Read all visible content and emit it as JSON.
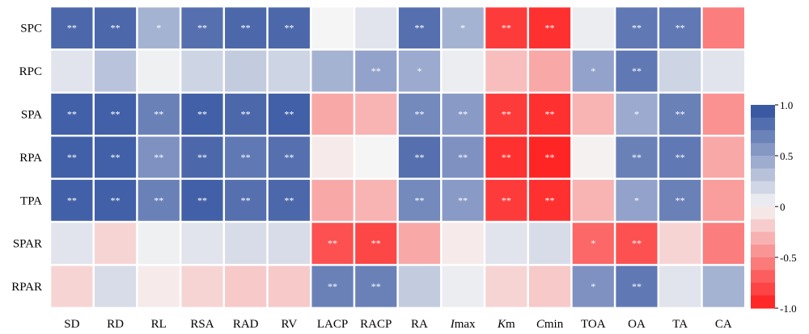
{
  "chart_data": {
    "type": "heatmap",
    "rows": [
      "SPC",
      "RPC",
      "SPA",
      "RPA",
      "TPA",
      "SPAR",
      "RPAR"
    ],
    "columns": [
      {
        "label": "SD",
        "italic_prefix": ""
      },
      {
        "label": "RD",
        "italic_prefix": ""
      },
      {
        "label": "RL",
        "italic_prefix": ""
      },
      {
        "label": "RSA",
        "italic_prefix": ""
      },
      {
        "label": "RAD",
        "italic_prefix": ""
      },
      {
        "label": "RV",
        "italic_prefix": ""
      },
      {
        "label": "LACP",
        "italic_prefix": ""
      },
      {
        "label": "RACP",
        "italic_prefix": ""
      },
      {
        "label": "RA",
        "italic_prefix": ""
      },
      {
        "label": "max",
        "italic_prefix": "I"
      },
      {
        "label": "m",
        "italic_prefix": "K"
      },
      {
        "label": "min",
        "italic_prefix": "C"
      },
      {
        "label": "TOA",
        "italic_prefix": ""
      },
      {
        "label": "OA",
        "italic_prefix": ""
      },
      {
        "label": "TA",
        "italic_prefix": ""
      },
      {
        "label": "CA",
        "italic_prefix": ""
      }
    ],
    "values": [
      [
        0.85,
        0.85,
        0.4,
        0.8,
        0.85,
        0.85,
        0.0,
        0.1,
        0.8,
        0.4,
        -0.85,
        -0.9,
        0.05,
        0.75,
        0.75,
        -0.55
      ],
      [
        0.1,
        0.3,
        0.03,
        0.2,
        0.25,
        0.2,
        0.4,
        0.5,
        0.45,
        0.05,
        -0.25,
        -0.35,
        0.5,
        0.75,
        0.2,
        0.1
      ],
      [
        0.9,
        0.9,
        0.7,
        0.9,
        0.85,
        0.9,
        -0.35,
        -0.3,
        0.65,
        0.55,
        -0.85,
        -0.9,
        -0.3,
        0.45,
        0.7,
        -0.45
      ],
      [
        0.9,
        0.9,
        0.6,
        0.85,
        0.75,
        0.8,
        -0.05,
        0.0,
        0.8,
        0.6,
        -0.9,
        -0.95,
        -0.02,
        0.7,
        0.75,
        -0.35
      ],
      [
        0.9,
        0.9,
        0.7,
        0.9,
        0.8,
        0.85,
        -0.35,
        -0.3,
        0.65,
        0.55,
        -0.85,
        -0.9,
        -0.3,
        0.5,
        0.7,
        -0.4
      ],
      [
        0.1,
        -0.15,
        0.03,
        0.1,
        0.15,
        0.15,
        -0.75,
        -0.8,
        -0.35,
        -0.05,
        0.1,
        0.15,
        -0.65,
        -0.75,
        -0.15,
        -0.55
      ],
      [
        -0.15,
        0.15,
        -0.05,
        -0.15,
        -0.2,
        -0.2,
        0.7,
        0.7,
        0.25,
        0.05,
        -0.15,
        -0.2,
        0.6,
        0.75,
        0.1,
        0.4
      ]
    ],
    "significance": [
      [
        "**",
        "**",
        "*",
        "**",
        "**",
        "**",
        "",
        "",
        "**",
        "*",
        "**",
        "**",
        "",
        "**",
        "**",
        ""
      ],
      [
        "",
        "",
        "",
        "",
        "",
        "",
        "",
        "**",
        "*",
        "",
        "",
        "",
        "*",
        "**",
        "",
        ""
      ],
      [
        "**",
        "**",
        "**",
        "**",
        "**",
        "**",
        "",
        "",
        "**",
        "**",
        "**",
        "**",
        "",
        "*",
        "**",
        ""
      ],
      [
        "**",
        "**",
        "**",
        "**",
        "**",
        "**",
        "",
        "",
        "**",
        "**",
        "**",
        "**",
        "",
        "**",
        "**",
        ""
      ],
      [
        "**",
        "**",
        "**",
        "**",
        "**",
        "**",
        "",
        "",
        "**",
        "**",
        "**",
        "**",
        "",
        "*",
        "**",
        ""
      ],
      [
        "",
        "",
        "",
        "",
        "",
        "",
        "**",
        "**",
        "",
        "",
        "",
        "",
        "*",
        "**",
        "",
        ""
      ],
      [
        "",
        "",
        "",
        "",
        "",
        "",
        "**",
        "**",
        "",
        "",
        "",
        "",
        "*",
        "**",
        "",
        ""
      ]
    ],
    "colorbar": {
      "min": -1.0,
      "max": 1.0,
      "ticks": [
        {
          "value": 1.0,
          "label": "1.0"
        },
        {
          "value": 0.5,
          "label": "0.5"
        },
        {
          "value": 0.0,
          "label": "0"
        },
        {
          "value": -0.5,
          "label": "-0.5"
        },
        {
          "value": -1.0,
          "label": "-1.0"
        }
      ],
      "bins": 16
    },
    "colors": {
      "positive": "#2e4f9e",
      "neutral": "#f5f5f5",
      "negative": "#ff1a1a",
      "cell_text": "#ffffff",
      "grid_line": "#ffffff"
    }
  }
}
